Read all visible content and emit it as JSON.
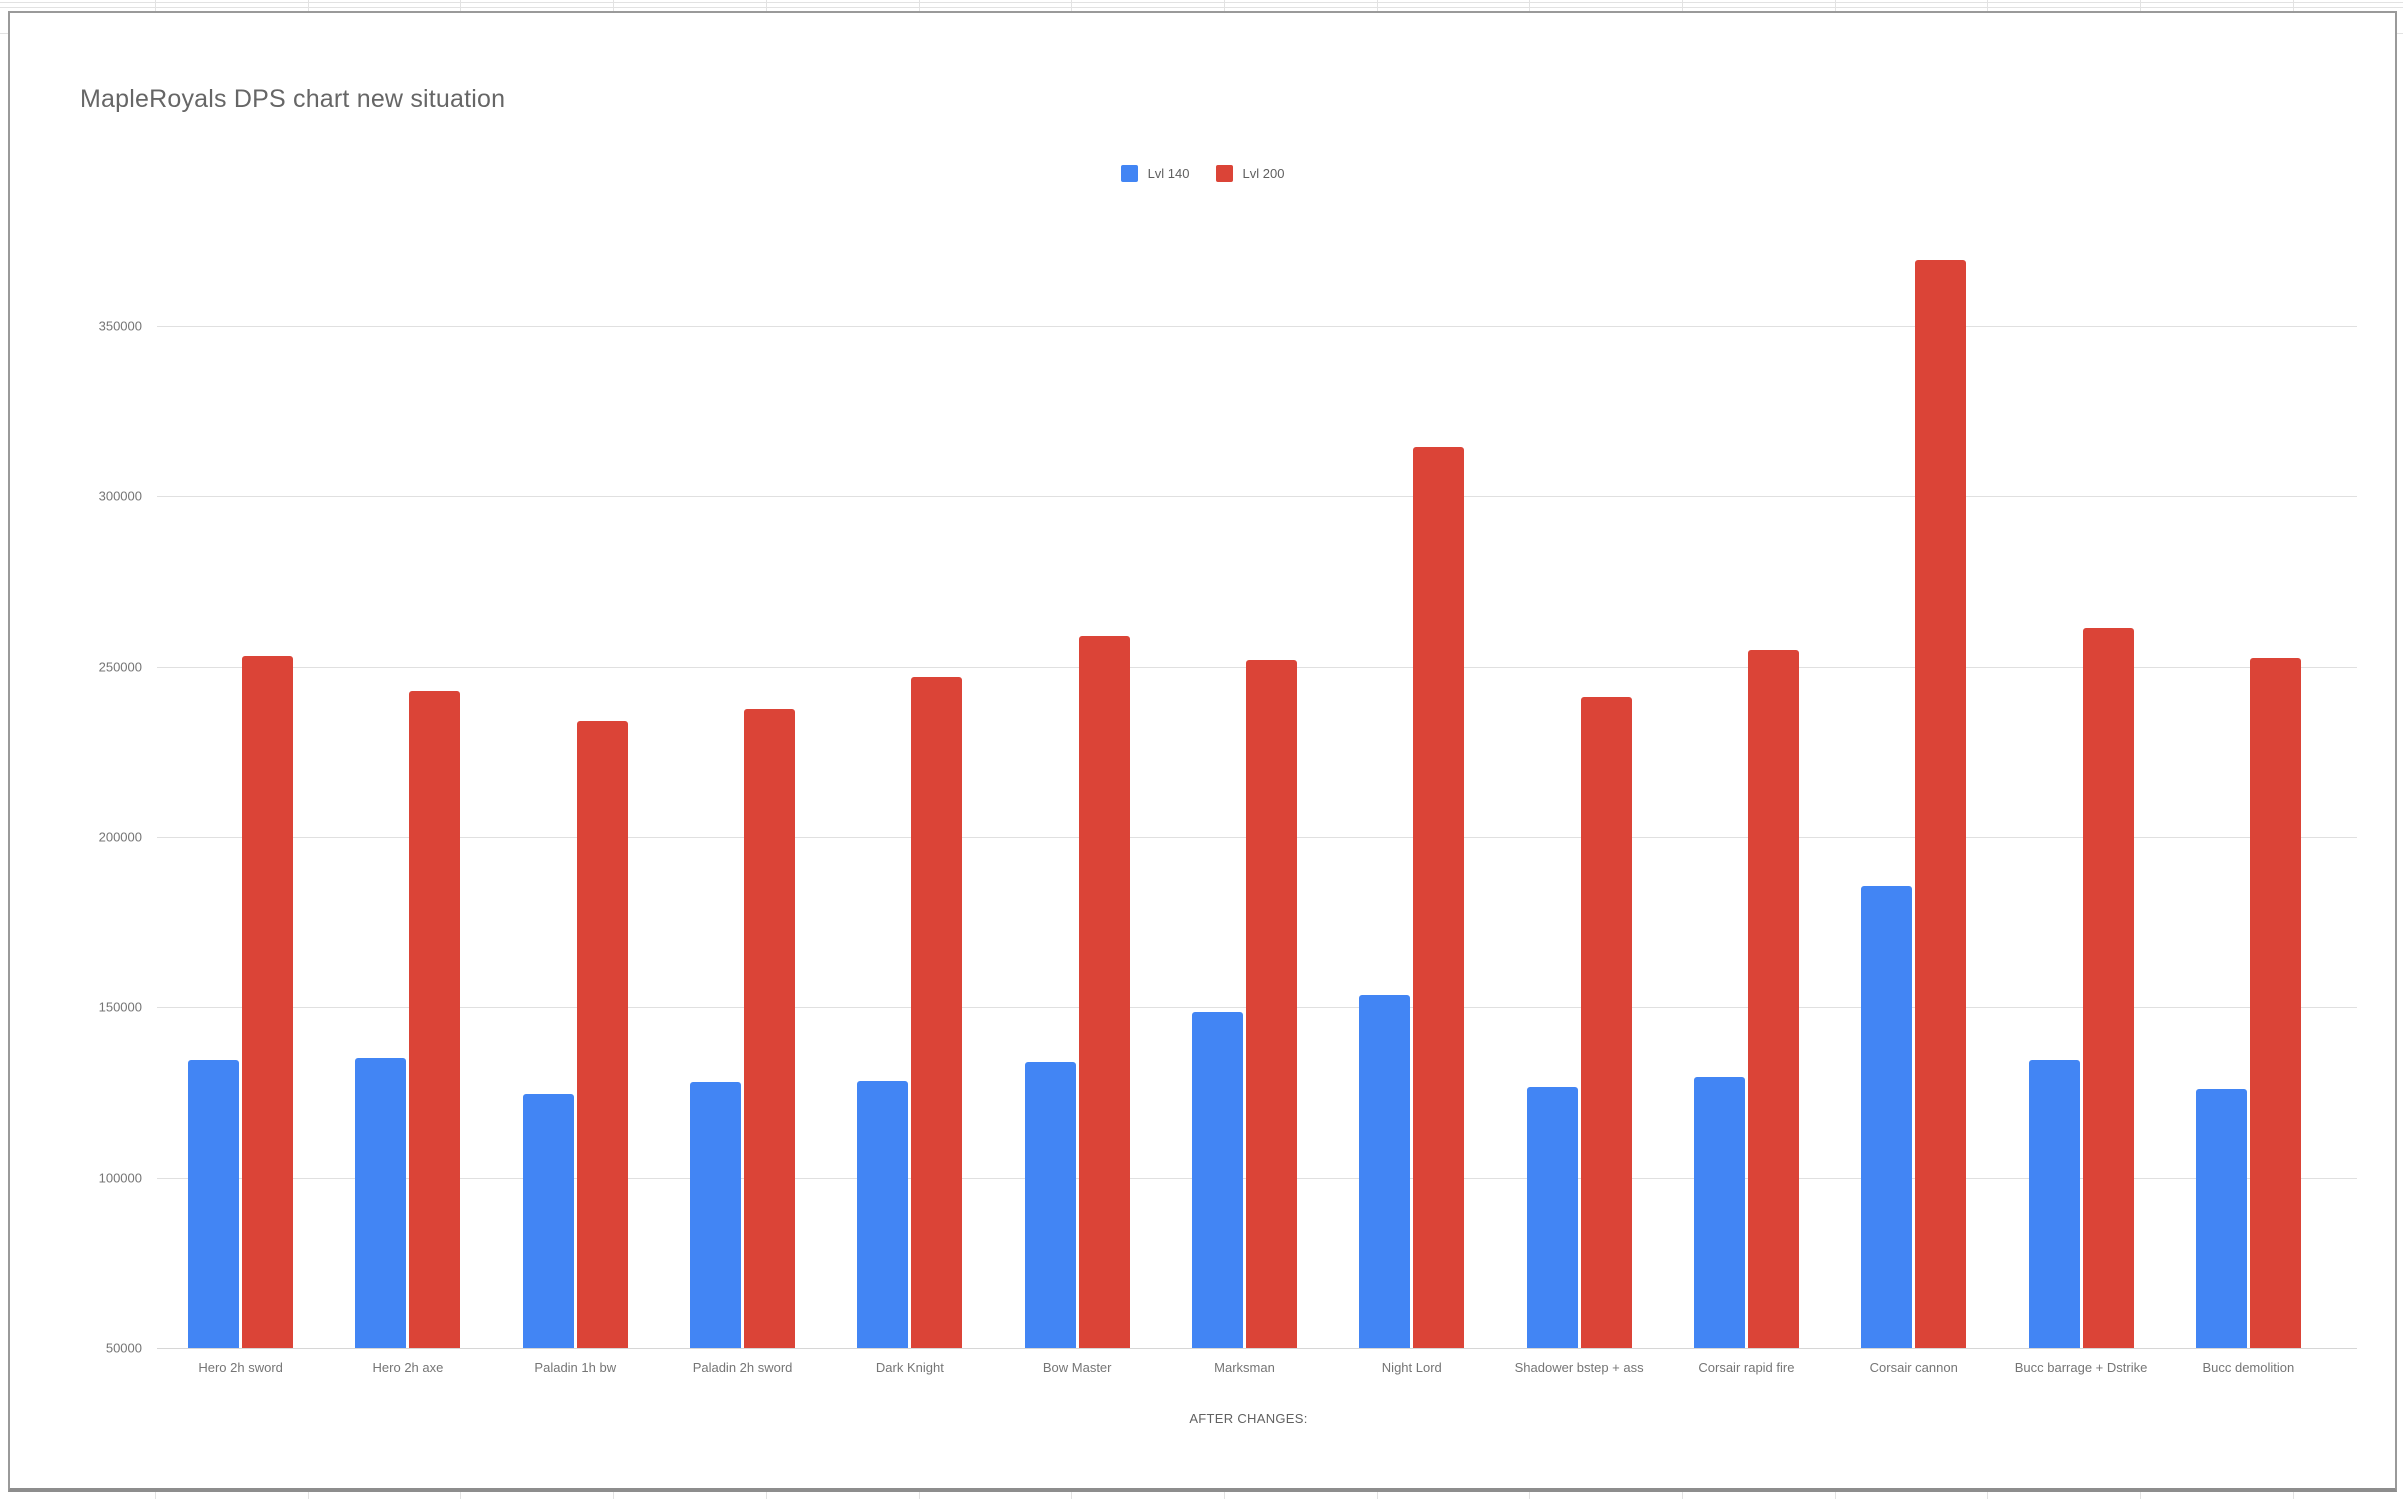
{
  "chart_data": {
    "type": "bar",
    "title": "MapleRoyals DPS chart new situation",
    "xlabel": "AFTER CHANGES:",
    "ylabel": "",
    "ylim": [
      50000,
      380000
    ],
    "yticks": [
      50000,
      100000,
      150000,
      200000,
      250000,
      300000,
      350000
    ],
    "grid": true,
    "legend_position": "top-center",
    "categories": [
      "Hero 2h sword",
      "Hero 2h axe",
      "Paladin 1h bw",
      "Paladin 2h sword",
      "Dark Knight",
      "Bow Master",
      "Marksman",
      "Night Lord",
      "Shadower bstep + ass",
      "Corsair rapid fire",
      "Corsair cannon",
      "Bucc barrage + Dstrike",
      "Bucc demolition"
    ],
    "series": [
      {
        "name": "Lvl 140",
        "color": "#4285F4",
        "values": [
          134500,
          135000,
          124500,
          128000,
          128500,
          134000,
          148500,
          153500,
          126500,
          129500,
          185500,
          134500,
          126000
        ]
      },
      {
        "name": "Lvl 200",
        "color": "#DB4437",
        "values": [
          253000,
          243000,
          234000,
          237500,
          247000,
          259000,
          252000,
          314500,
          241000,
          255000,
          369500,
          261500,
          252500
        ]
      }
    ]
  }
}
